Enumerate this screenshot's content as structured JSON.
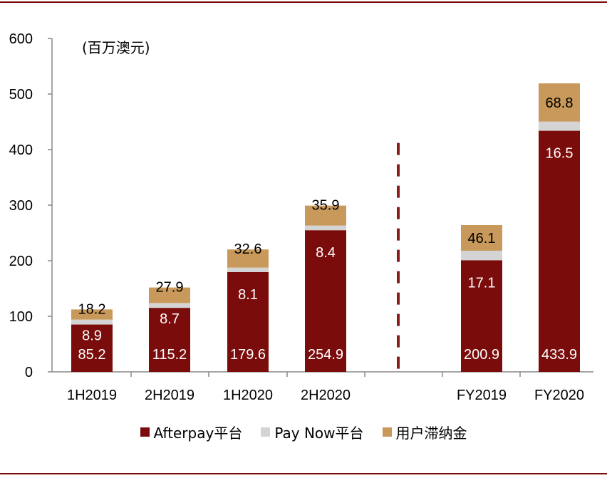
{
  "chart_data": {
    "type": "bar",
    "stacked": true,
    "unit_label": "(百万澳元)",
    "categories": [
      "1H2019",
      "2H2019",
      "1H2020",
      "2H2020",
      "FY2019",
      "FY2020"
    ],
    "series": [
      {
        "name": "Afterpay平台",
        "color": "#7b0c0c",
        "label_color": "#ffffff",
        "values": [
          85.2,
          115.2,
          179.6,
          254.9,
          200.9,
          433.9
        ]
      },
      {
        "name": "Pay Now平台",
        "color": "#d4d4d4",
        "label_color": "#ffffff",
        "values": [
          8.9,
          8.7,
          8.1,
          8.4,
          17.1,
          16.5
        ]
      },
      {
        "name": "用户滞纳金",
        "color": "#c8995a",
        "label_color": "#000000",
        "values": [
          18.2,
          27.9,
          32.6,
          35.9,
          46.1,
          68.8
        ]
      }
    ],
    "ylim": [
      0,
      600
    ],
    "yticks": [
      0,
      100,
      200,
      300,
      400,
      500,
      600
    ],
    "divider_color": "#8b1a1a",
    "legend_position": "bottom",
    "grid": false
  }
}
